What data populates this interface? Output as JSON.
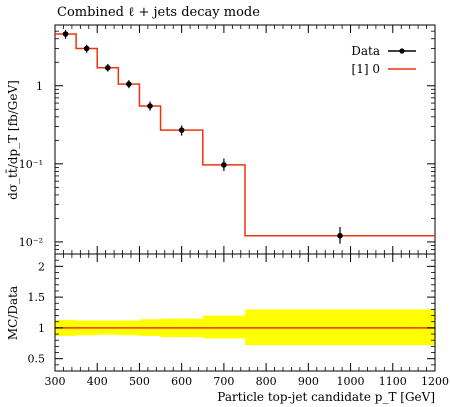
{
  "chart_data": [
    {
      "type": "line",
      "panel": "main",
      "title": "Combined ℓ + jets decay mode",
      "ylabel": "dσ_tt̄/dp_T [fb/GeV]",
      "yscale": "log",
      "ylim": [
        0.007,
        6
      ],
      "xlim": [
        300,
        1200
      ],
      "yticks": [
        {
          "value": 0.01,
          "label": "10⁻²"
        },
        {
          "value": 0.1,
          "label": "10⁻¹"
        },
        {
          "value": 1,
          "label": "1"
        }
      ],
      "legend_position": "top-right",
      "series": [
        {
          "name": "Data",
          "kind": "points-with-errors",
          "color": "#000000",
          "points": [
            {
              "x": 325,
              "y": 4.6,
              "ylo": 4.0,
              "yhi": 5.2
            },
            {
              "x": 375,
              "y": 3.0,
              "ylo": 2.65,
              "yhi": 3.35
            },
            {
              "x": 425,
              "y": 1.7,
              "ylo": 1.52,
              "yhi": 1.9
            },
            {
              "x": 475,
              "y": 1.05,
              "ylo": 0.93,
              "yhi": 1.18
            },
            {
              "x": 525,
              "y": 0.55,
              "ylo": 0.48,
              "yhi": 0.63
            },
            {
              "x": 600,
              "y": 0.27,
              "ylo": 0.23,
              "yhi": 0.31
            },
            {
              "x": 700,
              "y": 0.097,
              "ylo": 0.081,
              "yhi": 0.117
            },
            {
              "x": 975,
              "y": 0.012,
              "ylo": 0.0095,
              "yhi": 0.0155
            }
          ]
        },
        {
          "name": "[1] 0",
          "kind": "histogram",
          "color": "#ee3311",
          "bins": [
            {
              "x0": 300,
              "x1": 350,
              "y": 4.6
            },
            {
              "x0": 350,
              "x1": 400,
              "y": 3.0
            },
            {
              "x0": 400,
              "x1": 450,
              "y": 1.7
            },
            {
              "x0": 450,
              "x1": 500,
              "y": 1.05
            },
            {
              "x0": 500,
              "x1": 550,
              "y": 0.55
            },
            {
              "x0": 550,
              "x1": 650,
              "y": 0.27
            },
            {
              "x0": 650,
              "x1": 750,
              "y": 0.097
            },
            {
              "x0": 750,
              "x1": 1200,
              "y": 0.012
            }
          ]
        }
      ]
    },
    {
      "type": "line",
      "panel": "ratio",
      "xlabel": "Particle top-jet candidate p_T [GeV]",
      "ylabel": "MC/Data",
      "xlim": [
        300,
        1200
      ],
      "ylim": [
        0.3,
        2.2
      ],
      "xticks": [
        300,
        400,
        500,
        600,
        700,
        800,
        900,
        1000,
        1100,
        1200
      ],
      "yticks": [
        0.5,
        1,
        1.5,
        2
      ],
      "band_color": "#ffff00",
      "line_color": "#ee3311",
      "band": [
        {
          "x0": 300,
          "x1": 350,
          "lo": 0.87,
          "hi": 1.13
        },
        {
          "x0": 350,
          "x1": 400,
          "lo": 0.88,
          "hi": 1.12
        },
        {
          "x0": 400,
          "x1": 450,
          "lo": 0.89,
          "hi": 1.12
        },
        {
          "x0": 450,
          "x1": 500,
          "lo": 0.88,
          "hi": 1.12
        },
        {
          "x0": 500,
          "x1": 550,
          "lo": 0.87,
          "hi": 1.14
        },
        {
          "x0": 550,
          "x1": 650,
          "lo": 0.85,
          "hi": 1.15
        },
        {
          "x0": 650,
          "x1": 750,
          "lo": 0.83,
          "hi": 1.2
        },
        {
          "x0": 750,
          "x1": 1200,
          "lo": 0.72,
          "hi": 1.3
        }
      ],
      "ratio_value": 1
    }
  ]
}
